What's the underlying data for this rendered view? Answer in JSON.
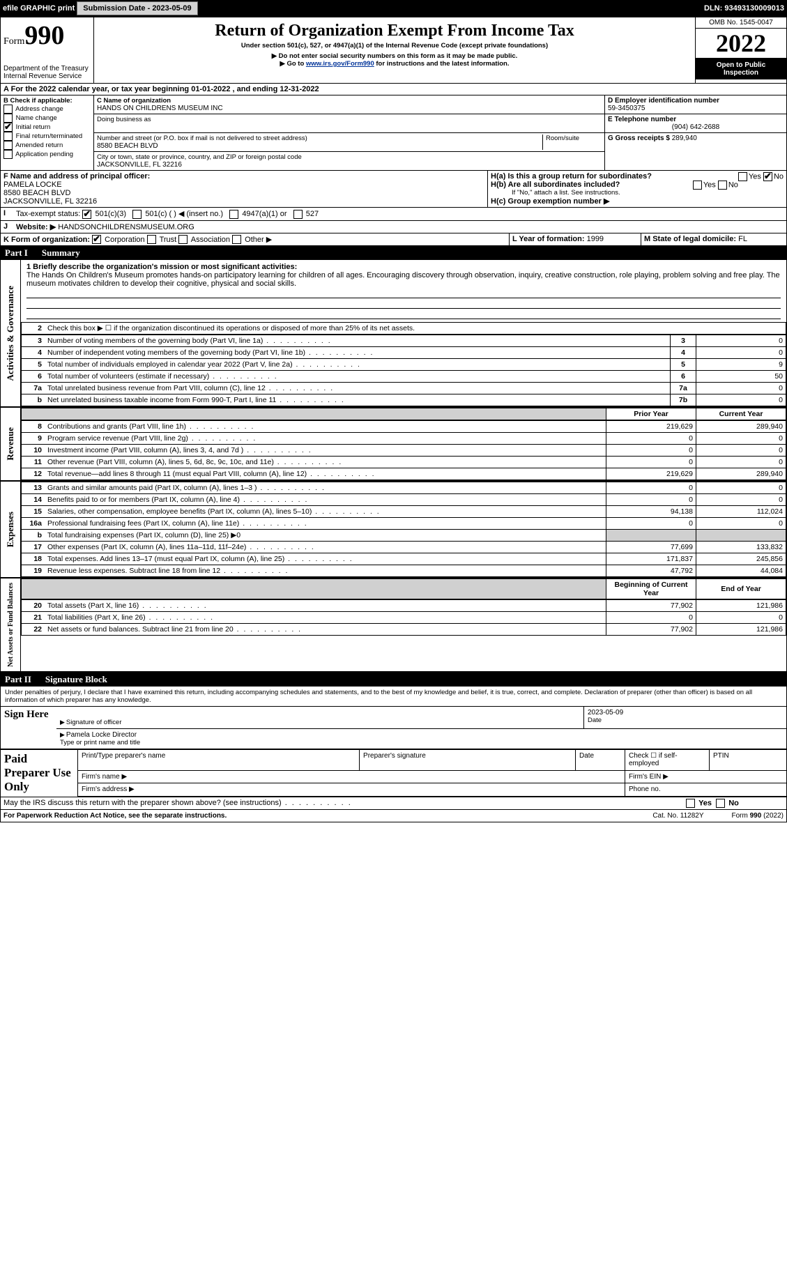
{
  "topbar": {
    "efile": "efile GRAPHIC print",
    "submission_label": "Submission Date - 2023-05-09",
    "dln": "DLN: 93493130009013"
  },
  "header": {
    "form_prefix": "Form",
    "form_no": "990",
    "dept1": "Department of the Treasury",
    "dept2": "Internal Revenue Service",
    "title": "Return of Organization Exempt From Income Tax",
    "subtitle": "Under section 501(c), 527, or 4947(a)(1) of the Internal Revenue Code (except private foundations)",
    "note1": "▶ Do not enter social security numbers on this form as it may be made public.",
    "note2_pre": "▶ Go to ",
    "note2_link": "www.irs.gov/Form990",
    "note2_post": " for instructions and the latest information.",
    "omb": "OMB No. 1545-0047",
    "year": "2022",
    "open": "Open to Public Inspection"
  },
  "A": {
    "text": "For the 2022 calendar year, or tax year beginning 01-01-2022    , and ending 12-31-2022"
  },
  "B": {
    "label": "B Check if applicable:",
    "items": [
      "Address change",
      "Name change",
      "Initial return",
      "Final return/terminated",
      "Amended return",
      "Application pending"
    ],
    "checked_index": 2
  },
  "C": {
    "name_label": "C Name of organization",
    "name": "HANDS ON CHILDRENS MUSEUM INC",
    "dba_label": "Doing business as",
    "addr_label": "Number and street (or P.O. box if mail is not delivered to street address)",
    "room_label": "Room/suite",
    "addr": "8580 BEACH BLVD",
    "city_label": "City or town, state or province, country, and ZIP or foreign postal code",
    "city": "JACKSONVILLE, FL  32216"
  },
  "D": {
    "label": "D Employer identification number",
    "value": "59-3450375"
  },
  "E": {
    "label": "E Telephone number",
    "value": "(904) 642-2688"
  },
  "G": {
    "label": "G Gross receipts $",
    "value": "289,940"
  },
  "F": {
    "label": "F  Name and address of principal officer:",
    "name": "PAMELA LOCKE",
    "addr1": "8580 BEACH BLVD",
    "addr2": "JACKSONVILLE, FL  32216"
  },
  "H": {
    "a": "H(a)  Is this a group return for subordinates?",
    "b": "H(b)  Are all subordinates included?",
    "b_note": "If \"No,\" attach a list. See instructions.",
    "c": "H(c)  Group exemption number ▶",
    "yes": "Yes",
    "no": "No"
  },
  "I": {
    "label": "Tax-exempt status:",
    "opts": [
      "501(c)(3)",
      "501(c) (  ) ◀ (insert no.)",
      "4947(a)(1) or",
      "527"
    ]
  },
  "J": {
    "label": "Website: ▶",
    "value": "HANDSONCHILDRENSMUSEUM.ORG"
  },
  "K": {
    "label": "K Form of organization:",
    "opts": [
      "Corporation",
      "Trust",
      "Association",
      "Other ▶"
    ]
  },
  "L": {
    "label": "L Year of formation:",
    "value": "1999"
  },
  "M": {
    "label": "M State of legal domicile:",
    "value": "FL"
  },
  "part1": {
    "label": "Part I",
    "title": "Summary"
  },
  "mission": {
    "line1_label": "1 Briefly describe the organization's mission or most significant activities:",
    "text": "The Hands On Children's Museum promotes hands-on participatory learning for children of all ages. Encouraging discovery through observation, inquiry, creative construction, role playing, problem solving and free play. The museum motivates children to develop their cognitive, physical and social skills."
  },
  "governance": {
    "line2": "Check this box ▶ ☐  if the organization discontinued its operations or disposed of more than 25% of its net assets.",
    "rows": [
      {
        "n": "3",
        "d": "Number of voting members of the governing body (Part VI, line 1a)",
        "box": "3",
        "v": "0"
      },
      {
        "n": "4",
        "d": "Number of independent voting members of the governing body (Part VI, line 1b)",
        "box": "4",
        "v": "0"
      },
      {
        "n": "5",
        "d": "Total number of individuals employed in calendar year 2022 (Part V, line 2a)",
        "box": "5",
        "v": "9"
      },
      {
        "n": "6",
        "d": "Total number of volunteers (estimate if necessary)",
        "box": "6",
        "v": "50"
      },
      {
        "n": "7a",
        "d": "Total unrelated business revenue from Part VIII, column (C), line 12",
        "box": "7a",
        "v": "0"
      },
      {
        "n": "b",
        "d": "Net unrelated business taxable income from Form 990-T, Part I, line 11",
        "box": "7b",
        "v": "0"
      }
    ]
  },
  "revexp_header": {
    "prior": "Prior Year",
    "current": "Current Year"
  },
  "revenue": [
    {
      "n": "8",
      "d": "Contributions and grants (Part VIII, line 1h)",
      "p": "219,629",
      "c": "289,940"
    },
    {
      "n": "9",
      "d": "Program service revenue (Part VIII, line 2g)",
      "p": "0",
      "c": "0"
    },
    {
      "n": "10",
      "d": "Investment income (Part VIII, column (A), lines 3, 4, and 7d )",
      "p": "0",
      "c": "0"
    },
    {
      "n": "11",
      "d": "Other revenue (Part VIII, column (A), lines 5, 6d, 8c, 9c, 10c, and 11e)",
      "p": "0",
      "c": "0"
    },
    {
      "n": "12",
      "d": "Total revenue—add lines 8 through 11 (must equal Part VIII, column (A), line 12)",
      "p": "219,629",
      "c": "289,940"
    }
  ],
  "expenses": [
    {
      "n": "13",
      "d": "Grants and similar amounts paid (Part IX, column (A), lines 1–3 )",
      "p": "0",
      "c": "0"
    },
    {
      "n": "14",
      "d": "Benefits paid to or for members (Part IX, column (A), line 4)",
      "p": "0",
      "c": "0"
    },
    {
      "n": "15",
      "d": "Salaries, other compensation, employee benefits (Part IX, column (A), lines 5–10)",
      "p": "94,138",
      "c": "112,024"
    },
    {
      "n": "16a",
      "d": "Professional fundraising fees (Part IX, column (A), line 11e)",
      "p": "0",
      "c": "0"
    },
    {
      "n": "b",
      "d": "Total fundraising expenses (Part IX, column (D), line 25) ▶0",
      "p": "",
      "c": "",
      "grey": true
    },
    {
      "n": "17",
      "d": "Other expenses (Part IX, column (A), lines 11a–11d, 11f–24e)",
      "p": "77,699",
      "c": "133,832"
    },
    {
      "n": "18",
      "d": "Total expenses. Add lines 13–17 (must equal Part IX, column (A), line 25)",
      "p": "171,837",
      "c": "245,856"
    },
    {
      "n": "19",
      "d": "Revenue less expenses. Subtract line 18 from line 12",
      "p": "47,792",
      "c": "44,084"
    }
  ],
  "netassets_header": {
    "begin": "Beginning of Current Year",
    "end": "End of Year"
  },
  "netassets": [
    {
      "n": "20",
      "d": "Total assets (Part X, line 16)",
      "p": "77,902",
      "c": "121,986"
    },
    {
      "n": "21",
      "d": "Total liabilities (Part X, line 26)",
      "p": "0",
      "c": "0"
    },
    {
      "n": "22",
      "d": "Net assets or fund balances. Subtract line 21 from line 20",
      "p": "77,902",
      "c": "121,986"
    }
  ],
  "part2": {
    "label": "Part II",
    "title": "Signature Block"
  },
  "penalty": "Under penalties of perjury, I declare that I have examined this return, including accompanying schedules and statements, and to the best of my knowledge and belief, it is true, correct, and complete. Declaration of preparer (other than officer) is based on all information of which preparer has any knowledge.",
  "sign": {
    "here": "Sign Here",
    "sig_officer": "Signature of officer",
    "date": "Date",
    "sig_date": "2023-05-09",
    "name_title": "Pamela Locke  Director",
    "type_name": "Type or print name and title"
  },
  "paid": {
    "label": "Paid Preparer Use Only",
    "h1": "Print/Type preparer's name",
    "h2": "Preparer's signature",
    "h3": "Date",
    "h4": "Check ☐ if self-employed",
    "h5": "PTIN",
    "firm_name": "Firm's name  ▶",
    "firm_ein": "Firm's EIN ▶",
    "firm_addr": "Firm's address ▶",
    "phone": "Phone no."
  },
  "discuss": "May the IRS discuss this return with the preparer shown above? (see instructions)",
  "footer": {
    "left": "For Paperwork Reduction Act Notice, see the separate instructions.",
    "mid": "Cat. No. 11282Y",
    "right": "Form 990 (2022)"
  },
  "side_labels": {
    "gov": "Activities & Governance",
    "rev": "Revenue",
    "exp": "Expenses",
    "net": "Net Assets or Fund Balances"
  }
}
